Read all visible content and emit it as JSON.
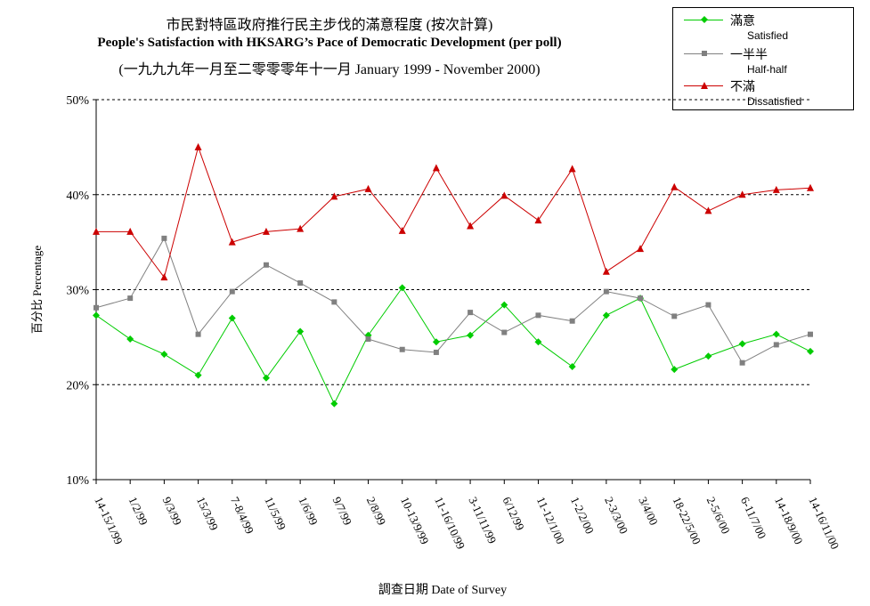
{
  "titles": {
    "line1": "市民對特區政府推行民主步伐的滿意程度 (按次計算)",
    "line2": "People's Satisfaction with HKSARG’s Pace of Democratic Development  (per poll)",
    "line3": "(一九九九年一月至二零零零年十一月 January 1999 - November 2000)"
  },
  "legend": [
    {
      "zh": "滿意",
      "en": "Satisfied",
      "color": "#00cc00",
      "marker": "diamond"
    },
    {
      "zh": "一半半",
      "en": "Half-half",
      "color": "#808080",
      "marker": "square"
    },
    {
      "zh": "不滿",
      "en": "Dissatisfied",
      "color": "#cc0000",
      "marker": "triangle"
    }
  ],
  "chart_data": {
    "type": "line",
    "xlabel": "調查日期 Date of Survey",
    "ylabel": "百分比 Percentage",
    "ylim": [
      0.1,
      0.5
    ],
    "yticks": [
      "10%",
      "20%",
      "30%",
      "40%",
      "50%"
    ],
    "ytick_values": [
      0.1,
      0.2,
      0.3,
      0.4,
      0.5
    ],
    "grid": "horizontal dotted",
    "legend_position": "top-right",
    "categories": [
      "14-15/1/99",
      "1/2/99",
      "9/3/99",
      "15/3/99",
      "7-8/4/99",
      "11/5/99",
      "1/6/99",
      "9/7/99",
      "2/8/99",
      "10-13/9/99",
      "11-16/10/99",
      "3-11/11/99",
      "6/12/99",
      "11-12/1/00",
      "1-2/2/00",
      "2-3/3/00",
      "3/4/00",
      "18-22/5/00",
      "2-5/6/00",
      "6-11/7/00",
      "14-18/9/00",
      "14-16/11/00"
    ],
    "series": [
      {
        "name": "滿意 Satisfied",
        "color": "#00cc00",
        "marker": "diamond",
        "values": [
          0.273,
          0.248,
          0.232,
          0.21,
          0.27,
          0.207,
          0.256,
          0.18,
          0.252,
          0.302,
          0.245,
          0.252,
          0.284,
          0.245,
          0.219,
          0.273,
          0.291,
          0.216,
          0.23,
          0.243,
          0.253,
          0.235
        ]
      },
      {
        "name": "一半半 Half-half",
        "color": "#808080",
        "marker": "square",
        "values": [
          0.281,
          0.291,
          0.354,
          0.253,
          0.298,
          0.326,
          0.307,
          0.287,
          0.248,
          0.237,
          0.234,
          0.276,
          0.255,
          0.273,
          0.267,
          0.298,
          0.291,
          0.272,
          0.284,
          0.223,
          0.242,
          0.253
        ]
      },
      {
        "name": "不滿 Dissatisfied",
        "color": "#cc0000",
        "marker": "triangle",
        "values": [
          0.361,
          0.361,
          0.313,
          0.45,
          0.35,
          0.361,
          0.364,
          0.398,
          0.406,
          0.362,
          0.428,
          0.367,
          0.399,
          0.373,
          0.427,
          0.319,
          0.343,
          0.408,
          0.383,
          0.4,
          0.405,
          0.407
        ]
      }
    ]
  }
}
